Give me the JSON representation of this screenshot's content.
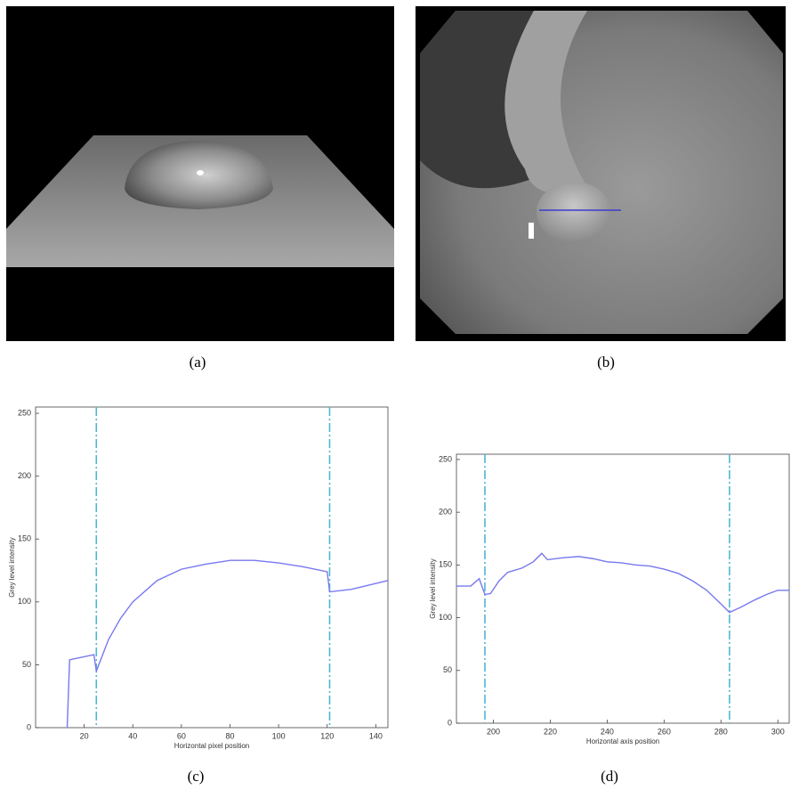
{
  "captions": [
    "(a)",
    "(b)",
    "(c)",
    "(d)"
  ],
  "chart_data": [
    {
      "type": "line",
      "x_label": "Horizontal pixel position",
      "y_label": "Grey level intensity",
      "x": [
        13,
        14,
        24,
        25,
        27,
        30,
        35,
        40,
        50,
        60,
        70,
        80,
        90,
        100,
        110,
        120,
        121,
        130,
        145
      ],
      "series": [
        {
          "color": "#7878f0",
          "values": [
            0,
            54,
            58,
            45,
            55,
            70,
            87,
            100,
            117,
            126,
            130,
            133,
            133,
            131,
            128,
            124,
            108,
            110,
            117
          ]
        }
      ],
      "xlim": [
        0,
        145
      ],
      "ylim": [
        0,
        255
      ],
      "xticks": [
        20,
        40,
        60,
        80,
        100,
        120,
        140
      ],
      "yticks": [
        0,
        50,
        100,
        150,
        200,
        250
      ],
      "reference_lines": [
        25,
        121
      ],
      "reference_color": "#4fb6d6"
    },
    {
      "type": "line",
      "x_label": "Horizontal axis position",
      "y_label": "Grey level intensity",
      "x": [
        187,
        192,
        195,
        197,
        199,
        202,
        205,
        210,
        214,
        217,
        219,
        225,
        230,
        235,
        240,
        245,
        250,
        255,
        260,
        265,
        270,
        275,
        280,
        283,
        287,
        292,
        296,
        300,
        304
      ],
      "series": [
        {
          "color": "#7878f0",
          "values": [
            130,
            130,
            137,
            122,
            123,
            135,
            143,
            147,
            153,
            161,
            155,
            157,
            158,
            156,
            153,
            152,
            150,
            149,
            146,
            142,
            135,
            126,
            113,
            105,
            110,
            117,
            122,
            126,
            126
          ]
        }
      ],
      "xlim": [
        187,
        304
      ],
      "ylim": [
        0,
        255
      ],
      "xticks": [
        200,
        220,
        240,
        260,
        280,
        300
      ],
      "yticks": [
        0,
        50,
        100,
        150,
        200,
        250
      ],
      "reference_lines": [
        197,
        283
      ],
      "reference_color": "#4fb6d6"
    }
  ]
}
